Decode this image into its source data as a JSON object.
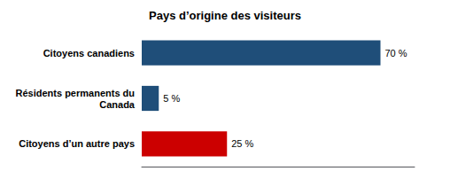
{
  "chart_data": {
    "type": "bar",
    "orientation": "horizontal",
    "title": "Pays d’origine des visiteurs",
    "categories": [
      "Citoyens canadiens",
      "Résidents permanents du\nCanada",
      "Citoyens d’un autre pays"
    ],
    "values": [
      70,
      5,
      25
    ],
    "value_labels": [
      "70 %",
      "5 %",
      "25 %"
    ],
    "colors": [
      "#1f4e79",
      "#1f4e79",
      "#cc0000"
    ],
    "xlim": [
      0,
      80
    ],
    "grid": false,
    "data_labels": true,
    "tick_labels": "y"
  }
}
